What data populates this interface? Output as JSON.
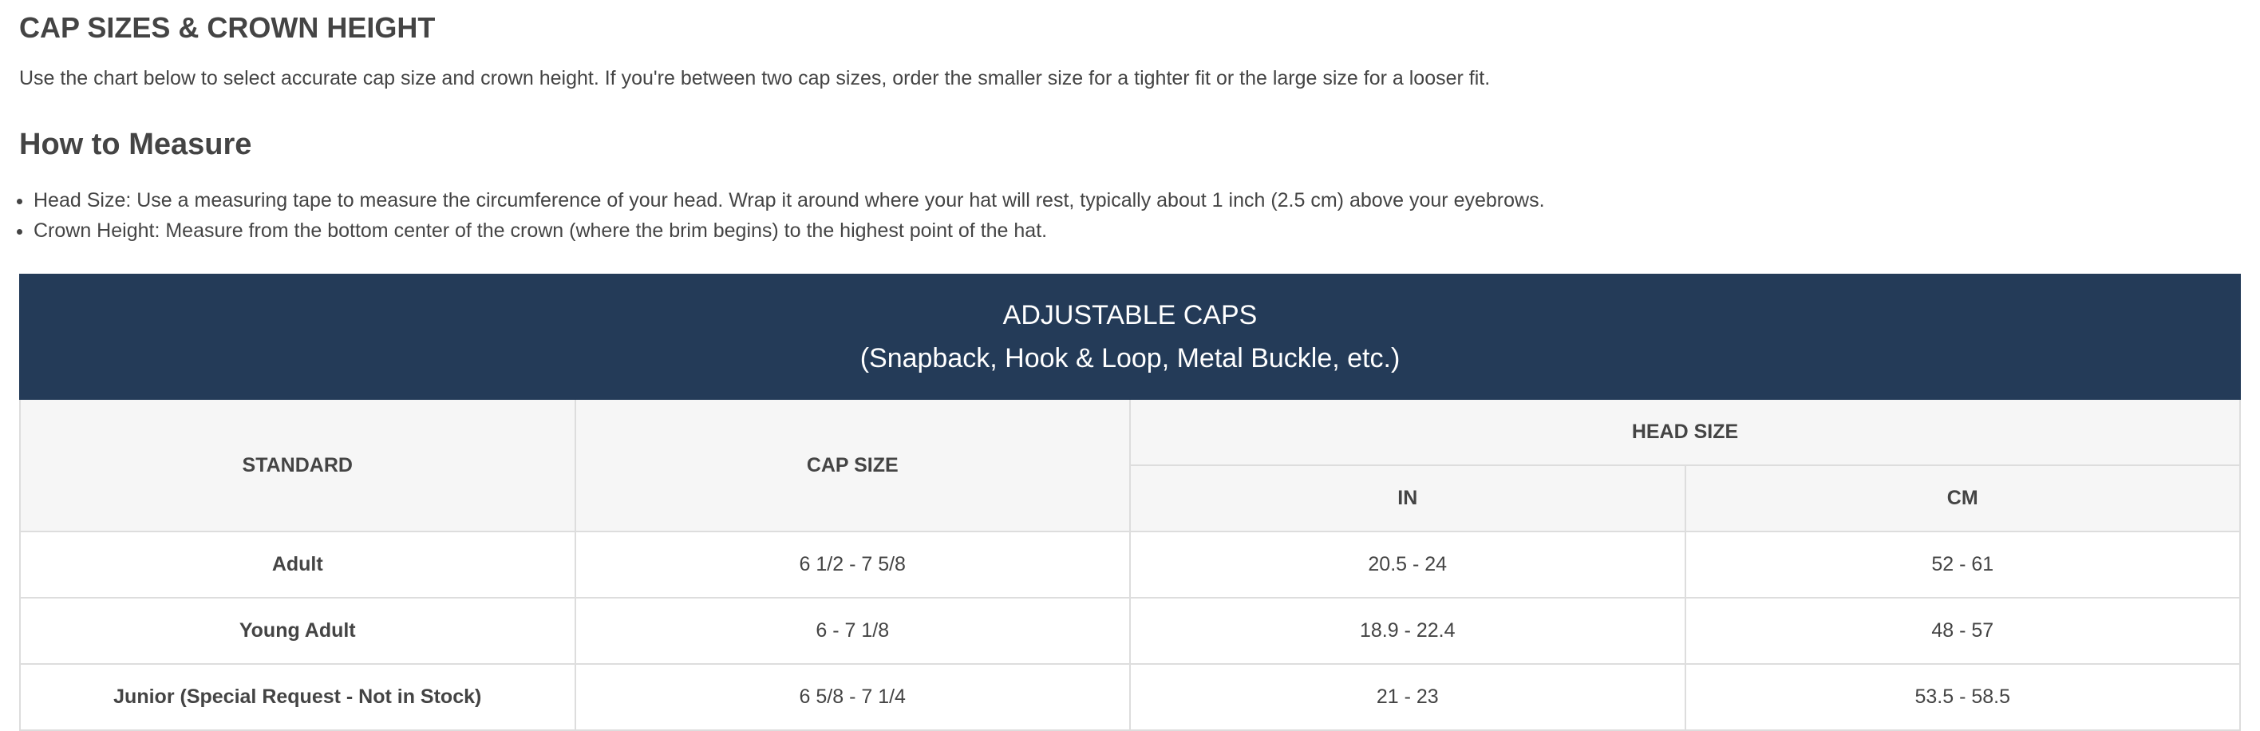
{
  "heading": "CAP SIZES & CROWN HEIGHT",
  "intro": "Use the chart below to select accurate cap size and crown height. If you're between two cap sizes, order the smaller size for a tighter fit or the large size for a looser fit.",
  "how_to": {
    "title": "How to Measure",
    "items": [
      "Head Size: Use a measuring tape to measure the circumference of your head. Wrap it around where your hat will rest, typically about 1 inch (2.5 cm) above your eyebrows.",
      "Crown Height: Measure from the bottom center of the crown (where the brim begins) to the highest point of the hat."
    ]
  },
  "table": {
    "title": "ADJUSTABLE CAPS",
    "subtitle": "(Snapback, Hook & Loop, Metal Buckle, etc.)",
    "headers": {
      "standard": "STANDARD",
      "cap_size": "CAP SIZE",
      "head_size": "HEAD SIZE",
      "in": "IN",
      "cm": "CM"
    },
    "rows": [
      {
        "standard": "Adult",
        "cap_size": "6 1/2 - 7 5/8",
        "in": "20.5 - 24",
        "cm": "52 - 61"
      },
      {
        "standard": "Young Adult",
        "cap_size": "6 - 7 1/8",
        "in": "18.9 - 22.4",
        "cm": "48 - 57"
      },
      {
        "standard": "Junior (Special Request - Not in Stock)",
        "cap_size": "6 5/8 - 7 1/4",
        "in": "21 - 23",
        "cm": "53.5 - 58.5"
      }
    ],
    "colors": {
      "banner": "#243b58",
      "header_bg": "#f6f6f6",
      "border": "#dddddd"
    }
  }
}
